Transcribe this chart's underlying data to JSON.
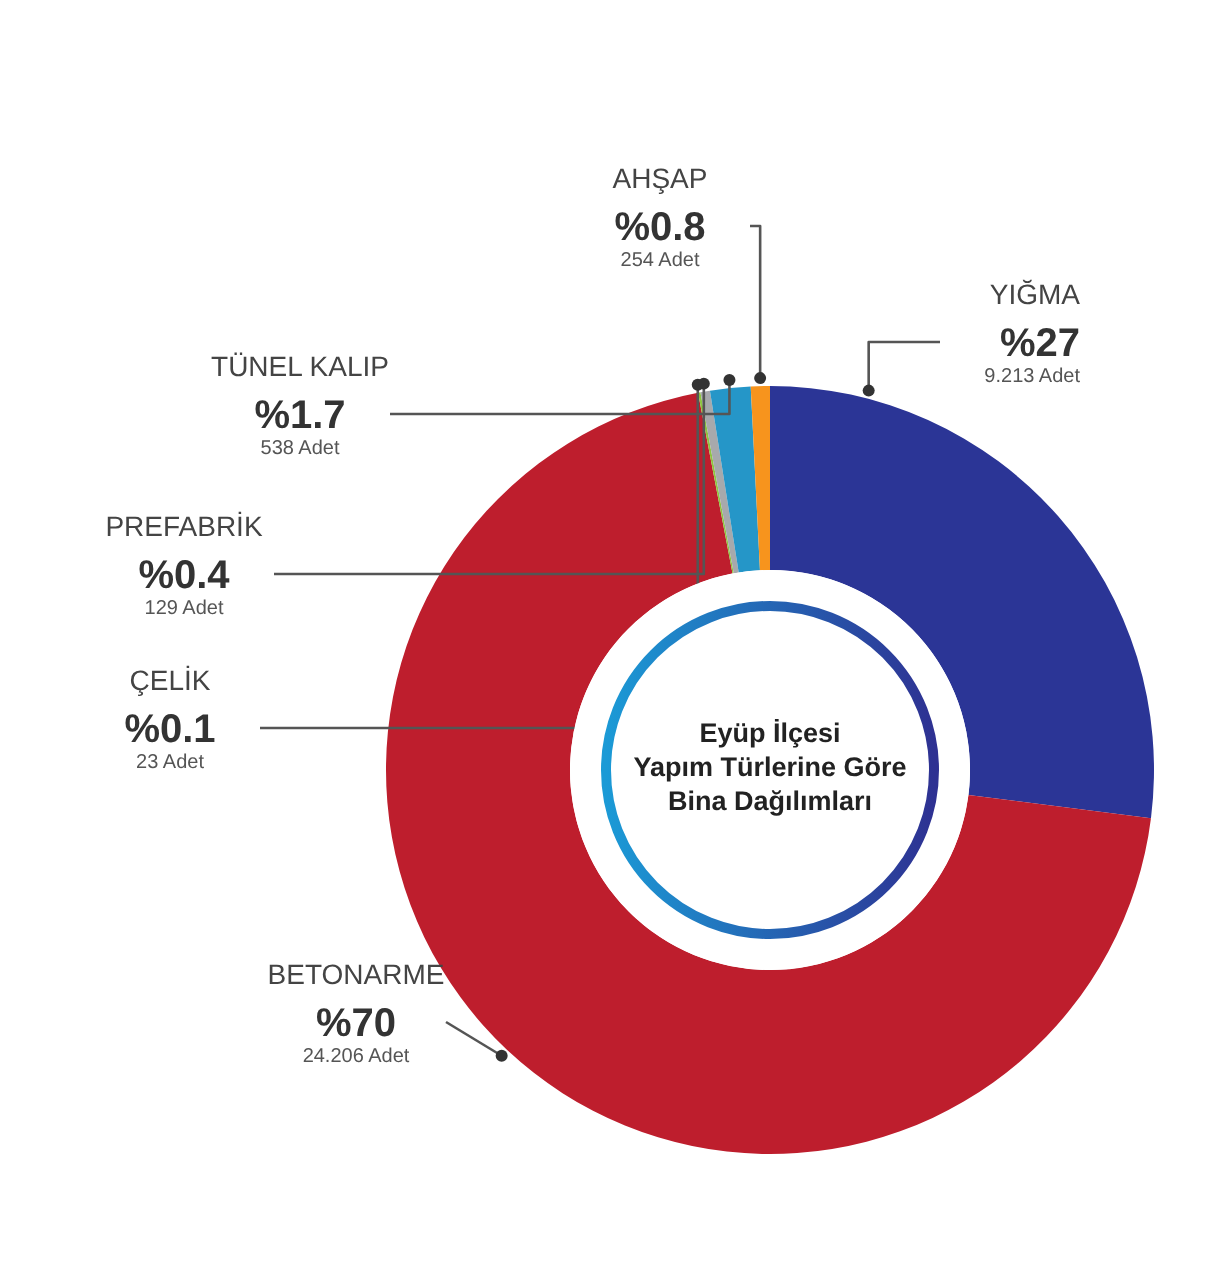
{
  "chart_data": {
    "type": "donut",
    "title": "Eyüp İlçesi\nYapım Türlerine Göre\nBina Dağılımları",
    "categories": [
      "YIĞMA",
      "BETONARME",
      "ÇELİK",
      "PREFABRİK",
      "TÜNEL KALIP",
      "AHŞAP"
    ],
    "values": [
      27,
      70,
      0.1,
      0.4,
      1.7,
      0.8
    ],
    "value_labels": [
      "%27",
      "%70",
      "%0.1",
      "%0.4",
      "%1.7",
      "%0.8"
    ],
    "annotations": [
      {
        "text": "9.213 Adet",
        "x": "YIĞMA"
      },
      {
        "text": "24.206 Adet",
        "x": "BETONARME"
      },
      {
        "text": "23 Adet",
        "x": "ÇELİK"
      },
      {
        "text": "129 Adet",
        "x": "PREFABRİK"
      },
      {
        "text": "538 Adet",
        "x": "TÜNEL KALIP"
      },
      {
        "text": "254 Adet",
        "x": "AHŞAP"
      }
    ],
    "colors": [
      "#2b3596",
      "#be1e2d",
      "#8dc63f",
      "#a7a9ac",
      "#2596c8",
      "#f7941d"
    ]
  }
}
